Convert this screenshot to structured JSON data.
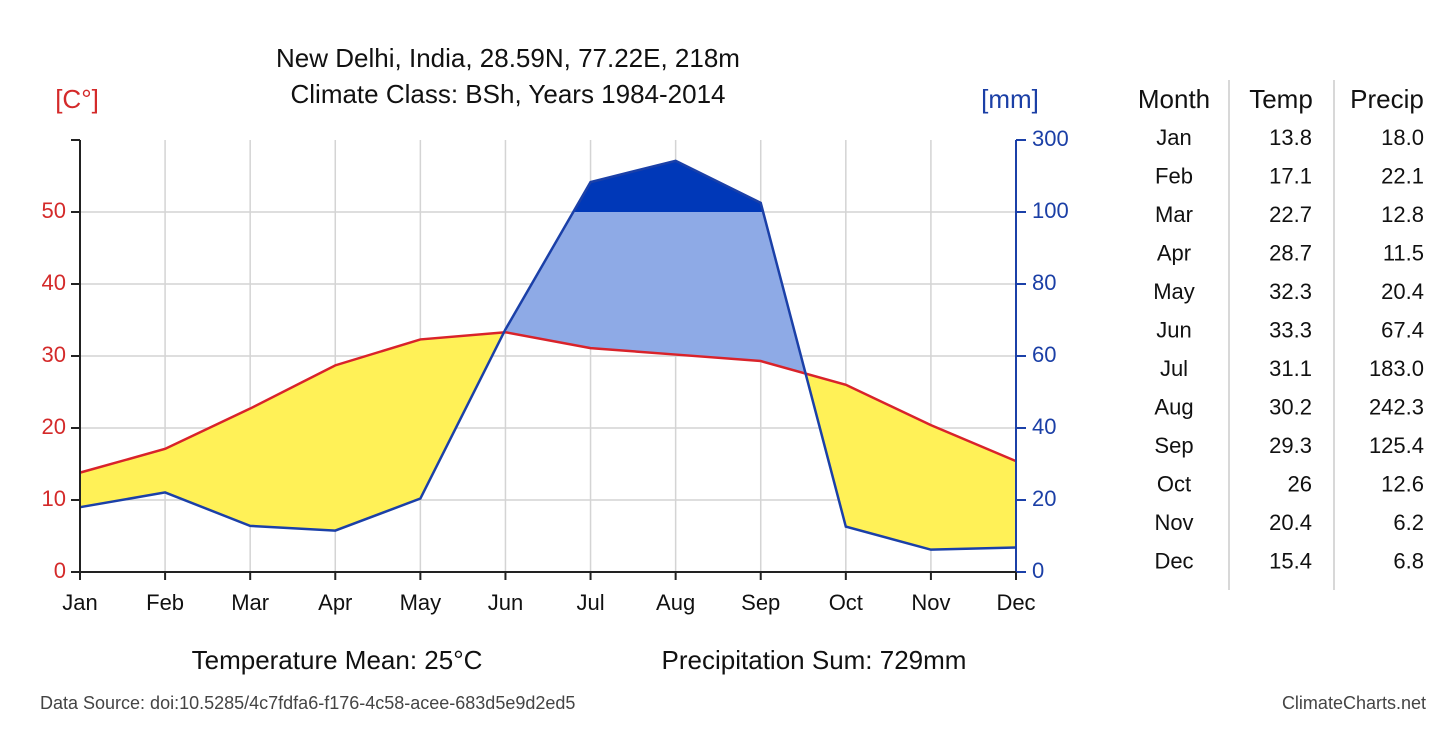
{
  "chart_data": {
    "type": "climate",
    "title": "New Delhi, India, 28.59N, 77.22E, 218m",
    "subtitle": "Climate Class: BSh, Years 1984-2014",
    "y_label": "[C°]",
    "y2_label": "[mm]",
    "categories": [
      "Jan",
      "Feb",
      "Mar",
      "Apr",
      "May",
      "Jun",
      "Jul",
      "Aug",
      "Sep",
      "Oct",
      "Nov",
      "Dec"
    ],
    "series": [
      {
        "name": "Temp",
        "color": "#d9232a",
        "values": [
          13.8,
          17.1,
          22.7,
          28.7,
          32.3,
          33.3,
          31.1,
          30.2,
          29.3,
          26.0,
          20.4,
          15.4
        ]
      },
      {
        "name": "Precip",
        "color": "#1b40a8",
        "axis": "y2",
        "values": [
          18.0,
          22.1,
          12.8,
          11.5,
          20.4,
          67.4,
          183.0,
          242.3,
          125.4,
          12.6,
          6.2,
          6.8
        ],
        "value_labels": [
          "18.0",
          "22.1",
          "12.8",
          "11.5",
          "20.4",
          "67.4",
          "183.0",
          "242.3",
          "125.4",
          "12.6",
          "6.2",
          "6.8"
        ]
      }
    ],
    "arid_color": "#fff157",
    "humid_color": "#8eaae6",
    "perhumid_color": "#0038b8",
    "ylim": [
      0,
      60
    ],
    "yticks": [
      0,
      10,
      20,
      30,
      40,
      50
    ],
    "y2lim": [
      0,
      300
    ],
    "y2ticks": [
      0,
      20,
      40,
      60,
      80,
      100,
      300
    ],
    "grid": true,
    "table_headers": [
      "Month",
      "Temp",
      "Precip"
    ],
    "annotations": [
      "Temperature Mean: 25°C",
      "Precipitation Sum: 729mm",
      "Data Source: doi:10.5285/4c7fdfa6-f176-4c58-acee-683d5e9d2ed5",
      "ClimateCharts.net"
    ]
  }
}
